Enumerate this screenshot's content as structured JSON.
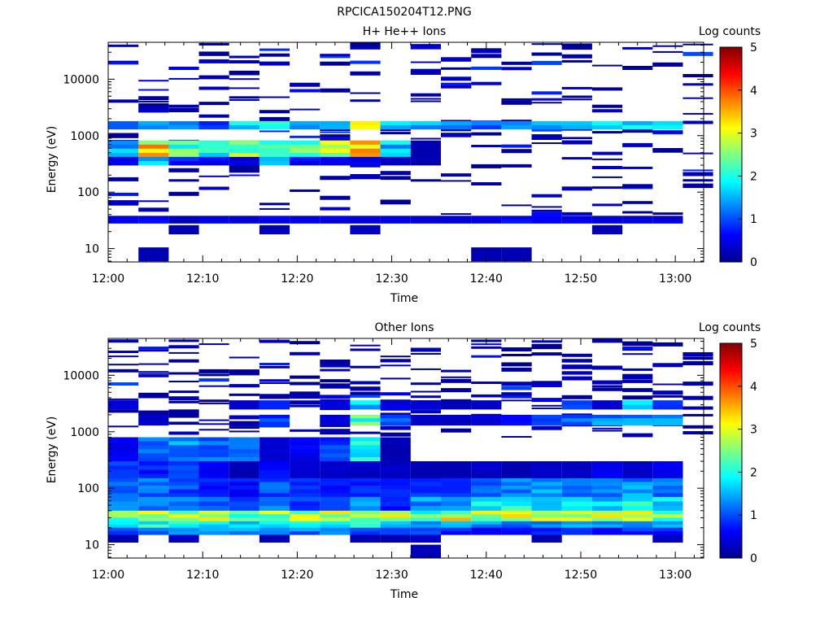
{
  "figure_title": "RPCICA150204T12.PNG",
  "colorbar": {
    "label": "Log counts",
    "ticks": [
      "0",
      "1",
      "2",
      "3",
      "4",
      "5"
    ],
    "range": [
      0,
      5
    ],
    "colormap": [
      "#00008f",
      "#0000ff",
      "#00ffff",
      "#ffff00",
      "#ff0000",
      "#800000"
    ]
  },
  "chart_data": [
    {
      "type": "heatmap",
      "title": "H+ He++ Ions",
      "xlabel": "Time",
      "ylabel": "Energy (eV)",
      "x_ticks": [
        "12:00",
        "12:10",
        "12:20",
        "12:30",
        "12:40",
        "12:50",
        "13:00"
      ],
      "x_range_minutes": [
        0,
        63
      ],
      "y_scale": "log",
      "y_range_eV": [
        5.8,
        45000
      ],
      "y_ticks": [
        "10",
        "100",
        "1000",
        "10000"
      ],
      "z_label": "Log counts",
      "z_range": [
        0,
        5
      ],
      "time_bins_minutes": [
        0,
        3.2,
        6.4,
        9.6,
        12.8,
        16.0,
        19.2,
        22.4,
        25.6,
        28.8,
        32.0,
        35.2,
        38.4,
        41.6,
        44.8,
        48.0,
        51.2,
        54.4,
        57.6,
        60.8
      ],
      "bands": [
        {
          "e": [
            1300,
            1800
          ],
          "levels": [
            1.2,
            1.4,
            1.3,
            1.0,
            1.7,
            1.9,
            1.6,
            1.4,
            2.7,
            1.5,
            1.4,
            1.3,
            1.2,
            1.4,
            1.5,
            1.6,
            1.7,
            1.6,
            1.8
          ]
        },
        {
          "e": [
            420,
            820
          ],
          "levels": [
            1.5,
            3.3,
            2.3,
            2.0,
            2.4,
            2.1,
            2.2,
            2.8,
            3.5,
            1.6,
            0.2,
            0,
            0,
            0,
            0,
            0,
            0,
            0,
            0
          ]
        },
        {
          "e": [
            300,
            420
          ],
          "levels": [
            0.5,
            1.7,
            0.8,
            0.6,
            0.4,
            1.3,
            0.6,
            0.5,
            0.5,
            0.3,
            0.2,
            0,
            0,
            0,
            0,
            0,
            0,
            0,
            0
          ]
        },
        {
          "e": [
            28,
            38
          ],
          "levels": [
            0.5,
            0.6,
            0.3,
            0.5,
            0.4,
            0.5,
            0.5,
            0.5,
            0.5,
            0.4,
            0.4,
            0.5,
            0.5,
            0.6,
            0.5,
            0.5,
            0.4,
            0.4,
            0.4
          ]
        },
        {
          "e": [
            18,
            26
          ],
          "levels": [
            0,
            0,
            0.2,
            0,
            0,
            0.2,
            0,
            0,
            0.3,
            0,
            0,
            0,
            0,
            0,
            0,
            0,
            0.2,
            0,
            0
          ]
        },
        {
          "e": [
            6,
            10.5
          ],
          "levels": [
            0,
            0.2,
            0,
            0,
            0,
            0,
            0,
            0,
            0,
            0,
            0,
            0,
            0.2,
            0.2,
            0,
            0,
            0,
            0,
            0
          ]
        }
      ],
      "sparse_counts": {
        "e_range": [
          40,
          42000
        ],
        "typical_level": 0.3,
        "peak_level": 1.0
      }
    },
    {
      "type": "heatmap",
      "title": "Other Ions",
      "xlabel": "Time",
      "ylabel": "Energy (eV)",
      "x_ticks": [
        "12:00",
        "12:10",
        "12:20",
        "12:30",
        "12:40",
        "12:50",
        "13:00"
      ],
      "x_range_minutes": [
        0,
        63
      ],
      "y_scale": "log",
      "y_range_eV": [
        5.8,
        45000
      ],
      "y_ticks": [
        "10",
        "100",
        "1000",
        "10000"
      ],
      "z_label": "Log counts",
      "z_range": [
        0,
        5
      ],
      "time_bins_minutes": [
        0,
        3.2,
        6.4,
        9.6,
        12.8,
        16.0,
        19.2,
        22.4,
        25.6,
        28.8,
        32.0,
        35.2,
        38.4,
        41.6,
        44.8,
        48.0,
        51.2,
        54.4,
        57.6,
        60.8
      ],
      "bands": [
        {
          "e": [
            2500,
            3600
          ],
          "levels": [
            0.4,
            0,
            0,
            0,
            0.3,
            0.9,
            0,
            0.4,
            1.7,
            0.5,
            0.3,
            0.3,
            0.3,
            0,
            0,
            0.9,
            0.4,
            1.8,
            0.9
          ]
        },
        {
          "e": [
            1300,
            2000
          ],
          "levels": [
            0,
            0.3,
            0,
            0,
            0,
            0.9,
            0,
            0.4,
            2.2,
            1.2,
            0.3,
            0.3,
            0.4,
            0.8,
            0.9,
            1.1,
            1.3,
            1.3,
            1.6
          ]
        },
        {
          "e": [
            300,
            800
          ],
          "levels": [
            0.6,
            1.2,
            1.3,
            1.2,
            1.1,
            0.4,
            0.6,
            0.9,
            1.8,
            0.2,
            0,
            0,
            0,
            0,
            0,
            0,
            0,
            0,
            0
          ]
        },
        {
          "e": [
            150,
            300
          ],
          "levels": [
            1.0,
            0.8,
            1.1,
            0.6,
            0.2,
            0.6,
            0.4,
            0.3,
            0.3,
            0.3,
            0.2,
            0.2,
            0.3,
            0.2,
            0.3,
            0.3,
            0.5,
            0.3,
            0.6
          ]
        },
        {
          "e": [
            70,
            150
          ],
          "levels": [
            1.0,
            1.1,
            1.0,
            0.7,
            0.7,
            1.0,
            0.8,
            0.7,
            0.8,
            0.7,
            0.8,
            0.9,
            1.0,
            1.2,
            1.3,
            1.1,
            1.2,
            1.3,
            1.2
          ]
        },
        {
          "e": [
            40,
            70
          ],
          "levels": [
            1.2,
            1.3,
            1.2,
            1.0,
            1.0,
            1.2,
            0.9,
            1.0,
            1.3,
            0.7,
            1.3,
            1.6,
            1.8,
            2.0,
            2.0,
            1.7,
            1.6,
            1.8,
            1.9
          ]
        },
        {
          "e": [
            26,
            40
          ],
          "levels": [
            2.6,
            2.8,
            2.7,
            2.6,
            2.5,
            2.6,
            2.8,
            2.7,
            2.8,
            2.6,
            2.1,
            2.9,
            2.7,
            2.7,
            2.8,
            3.0,
            2.8,
            2.6,
            2.5
          ]
        },
        {
          "e": [
            20,
            26
          ],
          "levels": [
            1.8,
            1.9,
            1.8,
            1.9,
            1.8,
            1.9,
            1.8,
            1.8,
            1.9,
            1.8,
            1.5,
            1.3,
            1.3,
            1.1,
            1.4,
            1.4,
            1.3,
            1.2,
            1.4
          ]
        },
        {
          "e": [
            15,
            20
          ],
          "levels": [
            1.0,
            1.3,
            1.3,
            1.3,
            1.3,
            1.3,
            1.2,
            1.2,
            1.0,
            0.9,
            0.9,
            0.8,
            0.5,
            0.8,
            0.8,
            0.8,
            0.6,
            0.8,
            0.7
          ]
        },
        {
          "e": [
            11,
            15
          ],
          "levels": [
            0.2,
            0,
            0.3,
            0,
            0,
            0.2,
            0,
            0,
            0.2,
            0.2,
            0.3,
            0,
            0,
            0,
            0.2,
            0,
            0,
            0,
            0.3
          ]
        },
        {
          "e": [
            5.8,
            10
          ],
          "levels": [
            0,
            0,
            0,
            0,
            0,
            0,
            0,
            0,
            0,
            0,
            0.2,
            0,
            0,
            0,
            0,
            0,
            0,
            0,
            0
          ]
        }
      ],
      "sparse_counts": {
        "e_range": [
          800,
          42000
        ],
        "typical_level": 0.3,
        "peak_level": 1.0
      }
    }
  ]
}
